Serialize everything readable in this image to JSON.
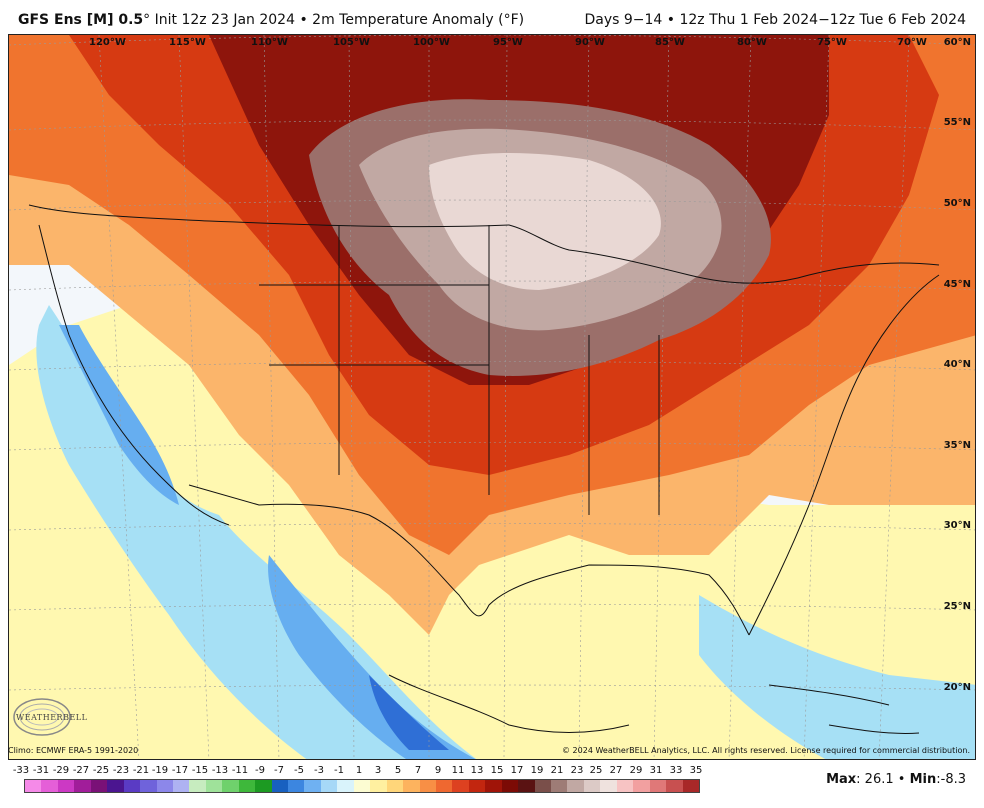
{
  "header": {
    "model": "GFS Ens [M] 0.5",
    "degree_symbol": "°",
    "init": "Init 12z 23 Jan 2024",
    "bullet": "•",
    "field": "2m Temperature Anomaly (°F)",
    "valid": "Days 9−14 • 12z Thu 1 Feb 2024−12z Tue 6 Feb 2024"
  },
  "map": {
    "longitude_labels": [
      "120°W",
      "115°W",
      "110°W",
      "105°W",
      "100°W",
      "95°W",
      "90°W",
      "85°W",
      "80°W",
      "75°W",
      "70°W"
    ],
    "latitude_labels": [
      "60°N",
      "55°N",
      "50°N",
      "45°N",
      "40°N",
      "35°N",
      "30°N",
      "25°N",
      "20°N"
    ],
    "background_color": "#f3f7fb",
    "colors": {
      "cold_deep": "#2f6fd6",
      "cold": "#66aef0",
      "cool": "#a6e0f5",
      "neutral": "#f3f7fb",
      "mild": "#fff8b0",
      "warm": "#fbb56b",
      "warmer": "#f0742e",
      "hot": "#d63a12",
      "very_hot": "#8e150c",
      "extreme_dark": "#5c0c0a",
      "extreme_mid": "#9b6f6a",
      "extreme_light": "#e9d8d4"
    }
  },
  "footer": {
    "climo": "Climo: ECMWF ERA-5 1991-2020",
    "copyright": "© 2024 WeatherBELL Analytics, LLC. All rights reserved. License required for commercial distribution.",
    "logo_text": "WEATHERBELL",
    "max_label": "Max",
    "max_value": ": 26.1",
    "min_label": "Min",
    "min_value": ":-8.3",
    "separator": "•"
  },
  "colorbar": {
    "labels": [
      "-33",
      "-31",
      "-29",
      "-27",
      "-25",
      "-23",
      "-21",
      "-19",
      "-17",
      "-15",
      "-13",
      "-11",
      "-9",
      "-7",
      "-5",
      "-3",
      "-1",
      "1",
      "3",
      "5",
      "7",
      "9",
      "11",
      "13",
      "15",
      "17",
      "19",
      "21",
      "23",
      "25",
      "27",
      "29",
      "31",
      "33",
      "35"
    ],
    "colors": [
      "#f58ae8",
      "#e55fd8",
      "#cc39c4",
      "#a11d9a",
      "#7a1177",
      "#4b1590",
      "#5a3bc4",
      "#6f63db",
      "#8c87ea",
      "#aeb2f2",
      "#c7ecbf",
      "#9fe29a",
      "#6fd16c",
      "#3eb83b",
      "#1c9a22",
      "#1860c0",
      "#3c86e0",
      "#6fb1f2",
      "#a6d8f7",
      "#d9f3fb",
      "#fcfcd2",
      "#fff0a0",
      "#ffd67a",
      "#fdb35e",
      "#f88f45",
      "#ef6830",
      "#dd4120",
      "#c2260f",
      "#a01408",
      "#7c0b05",
      "#5a1212",
      "#7a4f4a",
      "#9e7c76",
      "#c1a8a3",
      "#dccac6",
      "#efe2de",
      "#f7c3c3",
      "#f2a0a0",
      "#e07878",
      "#c85050",
      "#a82828"
    ]
  }
}
